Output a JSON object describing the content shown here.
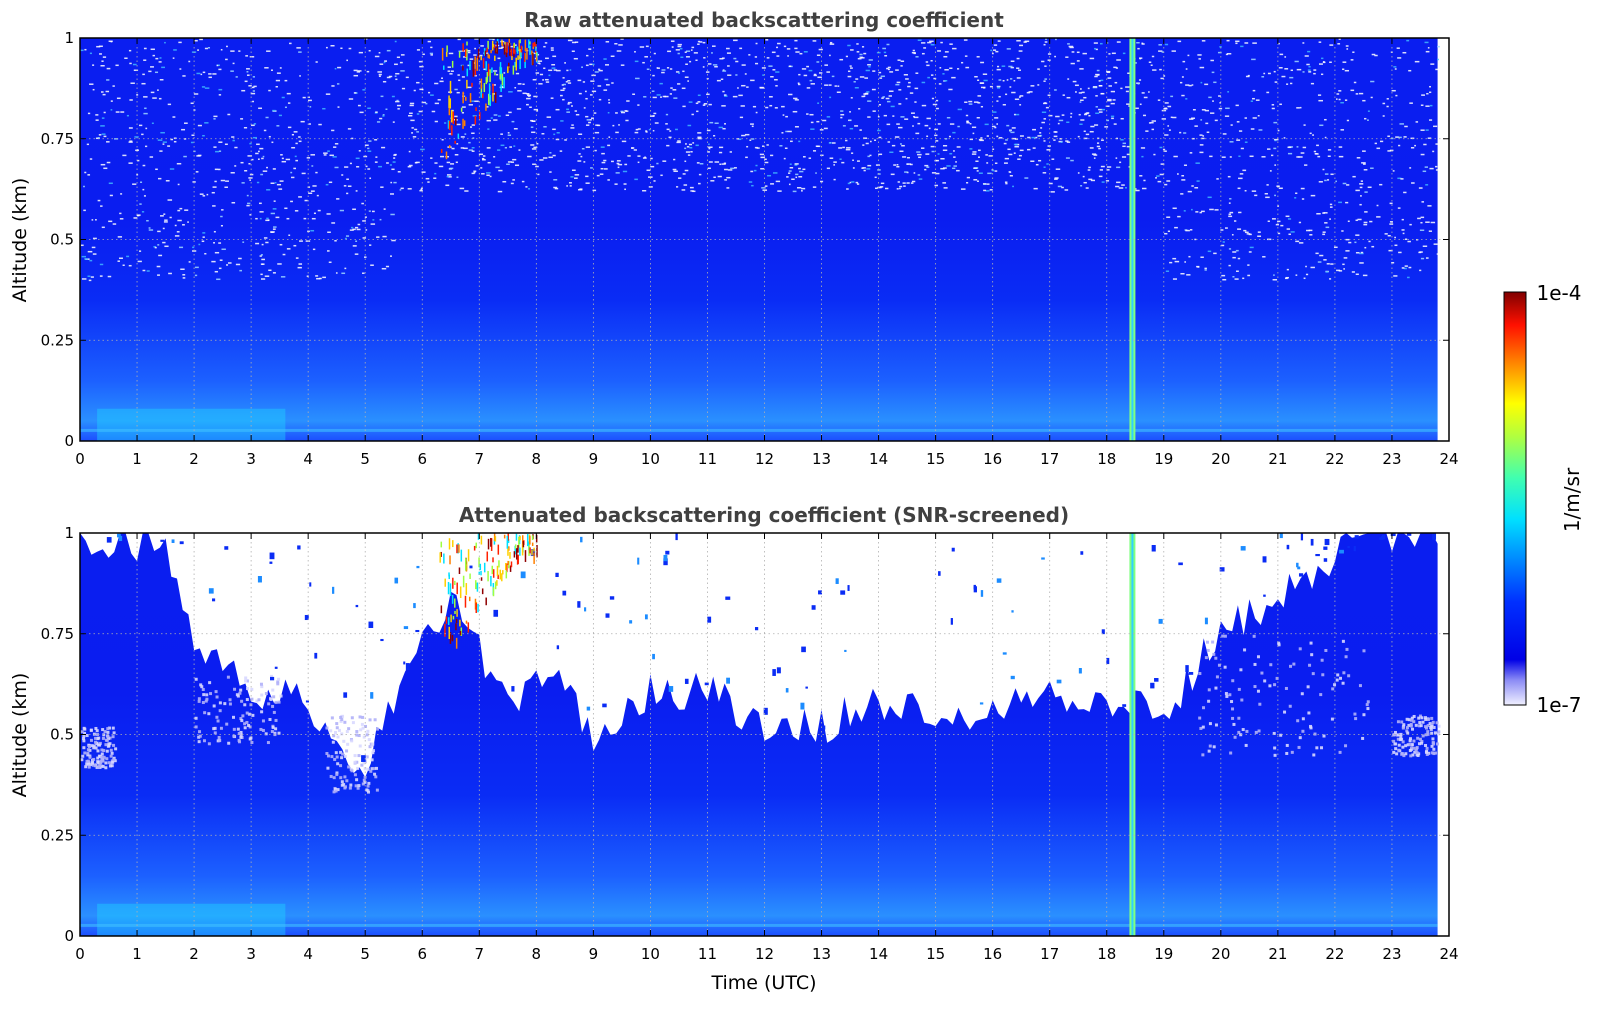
{
  "chart_data": [
    {
      "type": "heatmap",
      "title": "Raw attenuated backscattering coefficient",
      "xlabel": "",
      "ylabel": "Altitude (km)",
      "xlim": [
        0,
        24
      ],
      "ylim": [
        0,
        1
      ],
      "x_ticks": [
        "0",
        "1",
        "2",
        "3",
        "4",
        "5",
        "6",
        "7",
        "8",
        "9",
        "10",
        "11",
        "12",
        "13",
        "14",
        "15",
        "16",
        "17",
        "18",
        "19",
        "20",
        "21",
        "22",
        "23",
        "24"
      ],
      "y_ticks": [
        "0",
        "0.25",
        "0.5",
        "0.75",
        "1"
      ],
      "grid": true,
      "screened": false,
      "data_end_time": 23.8
    },
    {
      "type": "heatmap",
      "title": "Attenuated backscattering coefficient (SNR-screened)",
      "xlabel": "Time (UTC)",
      "ylabel": "Altitude (km)",
      "xlim": [
        0,
        24
      ],
      "ylim": [
        0,
        1
      ],
      "x_ticks": [
        "0",
        "1",
        "2",
        "3",
        "4",
        "5",
        "6",
        "7",
        "8",
        "9",
        "10",
        "11",
        "12",
        "13",
        "14",
        "15",
        "16",
        "17",
        "18",
        "19",
        "20",
        "21",
        "22",
        "23",
        "24"
      ],
      "y_ticks": [
        "0",
        "0.25",
        "0.5",
        "0.75",
        "1"
      ],
      "grid": true,
      "screened": true,
      "data_end_time": 23.8
    }
  ],
  "colorbar": {
    "min_label": "1e-7",
    "max_label": "1e-4",
    "label": "1/m/sr",
    "colormap": "jet",
    "scale": "log"
  },
  "features": {
    "strong_column_time": 18.45,
    "cloud_times": [
      6.3,
      8.0
    ],
    "screened_top_profile": [
      [
        0.0,
        1.0
      ],
      [
        1.5,
        0.95
      ],
      [
        2.0,
        0.75
      ],
      [
        3.0,
        0.62
      ],
      [
        4.0,
        0.57
      ],
      [
        5.0,
        0.42
      ],
      [
        5.8,
        0.7
      ],
      [
        6.5,
        0.82
      ],
      [
        7.5,
        0.6
      ],
      [
        8.5,
        0.62
      ],
      [
        9.0,
        0.5
      ],
      [
        10.0,
        0.6
      ],
      [
        11.0,
        0.62
      ],
      [
        12.0,
        0.5
      ],
      [
        13.0,
        0.52
      ],
      [
        14.0,
        0.58
      ],
      [
        15.0,
        0.56
      ],
      [
        16.0,
        0.56
      ],
      [
        17.0,
        0.62
      ],
      [
        18.0,
        0.56
      ],
      [
        18.5,
        0.58
      ],
      [
        19.0,
        0.55
      ],
      [
        20.0,
        0.75
      ],
      [
        21.0,
        0.85
      ],
      [
        22.0,
        0.95
      ],
      [
        23.0,
        1.0
      ],
      [
        23.8,
        1.0
      ]
    ]
  },
  "colors": {
    "title": "#404040",
    "grid": "#b0b0b0"
  }
}
